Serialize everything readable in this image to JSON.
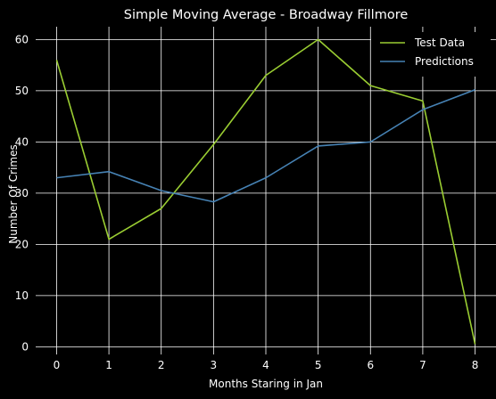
{
  "chart_data": {
    "type": "line",
    "title": "Simple Moving Average - Broadway Fillmore",
    "xlabel": "Months Staring in Jan",
    "ylabel": "Number Of Crimes",
    "x": [
      0,
      1,
      2,
      3,
      4,
      5,
      6,
      7,
      8
    ],
    "xticks": [
      "0",
      "1",
      "2",
      "3",
      "4",
      "5",
      "6",
      "7",
      "8"
    ],
    "yticks": [
      "0",
      "10",
      "20",
      "30",
      "40",
      "50",
      "60"
    ],
    "xlim": [
      -0.4,
      8.4
    ],
    "ylim": [
      -1.5,
      62.5
    ],
    "grid": true,
    "legend_position": "top-right",
    "background": "#000000",
    "series": [
      {
        "name": "Test Data",
        "color": "#9acd32",
        "values": [
          56,
          21,
          27,
          39.5,
          53,
          60,
          51,
          48,
          0.5
        ]
      },
      {
        "name": "Predictions",
        "color": "#4682b4",
        "values": [
          33,
          34.2,
          30.5,
          28.3,
          33,
          39.2,
          40,
          46.3,
          50.2
        ]
      }
    ]
  }
}
